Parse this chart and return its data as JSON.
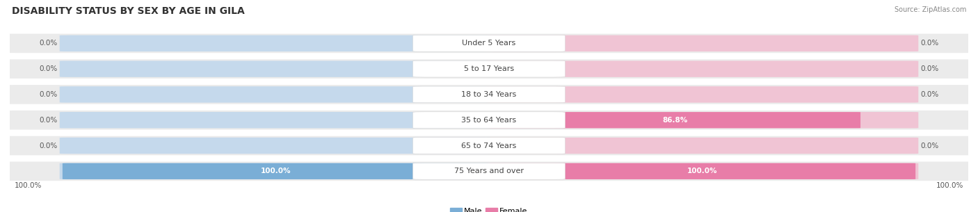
{
  "title": "DISABILITY STATUS BY SEX BY AGE IN GILA",
  "source": "Source: ZipAtlas.com",
  "categories": [
    "Under 5 Years",
    "5 to 17 Years",
    "18 to 34 Years",
    "35 to 64 Years",
    "65 to 74 Years",
    "75 Years and over"
  ],
  "male_values": [
    0.0,
    0.0,
    0.0,
    0.0,
    0.0,
    100.0
  ],
  "female_values": [
    0.0,
    0.0,
    0.0,
    86.8,
    0.0,
    100.0
  ],
  "male_color": "#7aaed6",
  "female_color": "#e87da8",
  "male_bg_color": "#c5d9ec",
  "female_bg_color": "#f0c4d4",
  "row_bg_color": "#ebebeb",
  "label_bg_color": "#ffffff",
  "title_fontsize": 10,
  "label_fontsize": 8,
  "value_fontsize": 7.5,
  "max_val": 100.0,
  "fig_bg_color": "#ffffff",
  "bottom_label": "100.0%"
}
